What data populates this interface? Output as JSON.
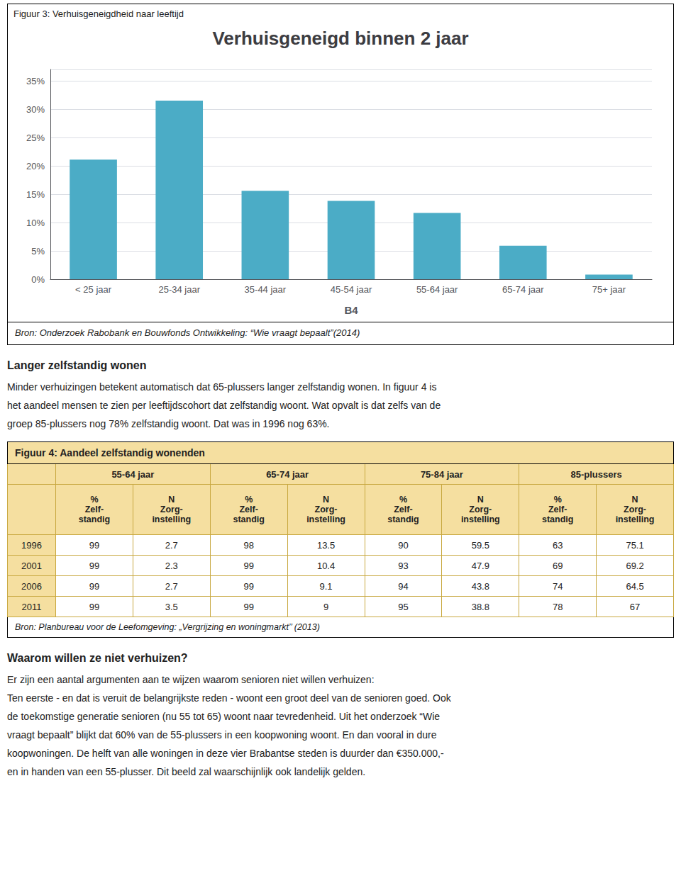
{
  "chart_data": [
    {
      "type": "bar",
      "figure_title": "Figuur 3: Verhuisgeneigdheid naar leeftijd",
      "title": "Verhuisgeneigd binnen 2 jaar",
      "xlabel": "B4",
      "categories": [
        "< 25 jaar",
        "25-34 jaar",
        "35-44 jaar",
        "45-54 jaar",
        "55-64 jaar",
        "65-74 jaar",
        "75+ jaar"
      ],
      "values": [
        0.211,
        0.315,
        0.156,
        0.138,
        0.117,
        0.059,
        0.008
      ],
      "color": "#4bacc6",
      "ylim": [
        0,
        0.37
      ],
      "yticks": [
        {
          "value": 0.0,
          "label": "0%"
        },
        {
          "value": 0.05,
          "label": "5%"
        },
        {
          "value": 0.1,
          "label": "10%"
        },
        {
          "value": 0.15,
          "label": "15%"
        },
        {
          "value": 0.2,
          "label": "20%"
        },
        {
          "value": 0.25,
          "label": "25%"
        },
        {
          "value": 0.3,
          "label": "30%"
        },
        {
          "value": 0.35,
          "label": "35%"
        }
      ],
      "grid": true,
      "source": "Bron: Onderzoek Rabobank en Bouwfonds Ontwikkeling: “Wie vraagt bepaalt”(2014)"
    },
    {
      "type": "text",
      "title": "Langer zelfstandig wonen",
      "lines": [
        "Minder verhuizingen betekent automatisch dat 65-plussers langer zelfstandig wonen. In figuur 4 is",
        "het aandeel mensen te zien per leeftijdscohort dat zelfstandig woont. Wat opvalt is dat zelfs van de",
        "groep 85-plussers nog 78% zelfstandig woont. Dat was in 1996 nog 63%."
      ]
    },
    {
      "type": "table",
      "title": "Figuur 4: Aandeel zelfstandig wonenden",
      "column_groups": [
        "55-64 jaar",
        "65-74 jaar",
        "75-84 jaar",
        "85-plussers"
      ],
      "column_labels": [
        "%\nZelf-\nstandig",
        "N\nZorg-\ninstelling",
        "%\nZelf-\nstandig",
        "N\nZorg-\ninstelling",
        "%\nZelf-\nstandig",
        "N\nZorg-\ninstelling",
        "%\nZelf-\nstandig",
        "N\nZorg-\ninstelling"
      ],
      "row_labels": [
        "1996",
        "2001",
        "2006",
        "2011"
      ],
      "rows": [
        [
          99,
          2.7,
          98,
          13.5,
          90,
          59.5,
          63,
          75.1
        ],
        [
          99,
          2.3,
          99,
          10.4,
          93,
          47.9,
          69,
          69.2
        ],
        [
          99,
          2.7,
          99,
          9.1,
          94,
          43.8,
          74,
          64.5
        ],
        [
          99,
          3.5,
          99,
          9.0,
          95,
          38.8,
          78,
          67.0
        ]
      ],
      "header_color": "#f5dfa0",
      "border_color": "#c8a840",
      "source": "Bron: Planbureau voor de Leefomgeving: „Vergrijzing en woningmarkt’’ (2013)"
    },
    {
      "type": "text",
      "title": "Waarom willen ze niet verhuizen?",
      "lines": [
        "Er zijn een aantal argumenten aan te wijzen waarom senioren niet willen verhuizen:",
        "Ten eerste - en dat is veruit de belangrijkste reden - woont een groot deel van de senioren goed. Ook",
        "de toekomstige generatie senioren (nu 55 tot 65) woont naar tevredenheid. Uit het onderzoek “Wie",
        "vraagt bepaalt” blijkt dat 60% van de 55-plussers in een koopwoning woont. En dan vooral in dure",
        "koopwoningen. De helft van alle woningen in deze vier Brabantse steden is duurder dan €350.000,-",
        "en in handen van een 55-plusser. Dit beeld zal waarschijnlijk ook landelijk gelden."
      ]
    }
  ]
}
